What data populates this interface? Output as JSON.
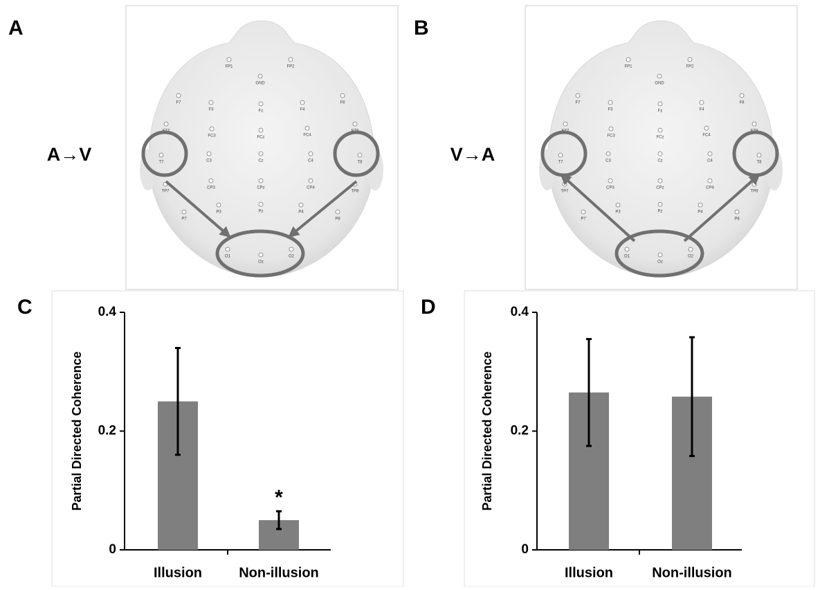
{
  "heads": [
    {
      "panel": "A",
      "direction": "A→V"
    },
    {
      "panel": "B",
      "direction": "V→A"
    }
  ],
  "electrodes": [
    "FP1",
    "FP2",
    "GND",
    "F7",
    "F3",
    "Fz",
    "F4",
    "F8",
    "FT7",
    "FC3",
    "FCz",
    "FC4",
    "FT8",
    "T7",
    "C3",
    "Cz",
    "C4",
    "T8",
    "TP7",
    "CP3",
    "CPz",
    "CP4",
    "TP8",
    "P7",
    "P3",
    "Pz",
    "P4",
    "P8",
    "O1",
    "Oz",
    "O2"
  ],
  "chart_data": [
    {
      "type": "bar",
      "panel": "C",
      "y_label": "Partial Directed Coherence",
      "categories": [
        "Illusion",
        "Non-illusion"
      ],
      "values": [
        0.25,
        0.05
      ],
      "errors": [
        0.09,
        0.015
      ],
      "color": "#7f7f7f",
      "ylim": [
        0,
        0.4
      ],
      "yticks": [
        0,
        0.2,
        0.4
      ],
      "annotations": [
        {
          "text": "*",
          "category": "Non-illusion"
        }
      ]
    },
    {
      "type": "bar",
      "panel": "D",
      "y_label": "Partial Directed Coherence",
      "categories": [
        "Illusion",
        "Non-illusion"
      ],
      "values": [
        0.265,
        0.258
      ],
      "errors": [
        0.09,
        0.1
      ],
      "color": "#7f7f7f",
      "ylim": [
        0,
        0.4
      ],
      "yticks": [
        0,
        0.2,
        0.4
      ]
    }
  ]
}
